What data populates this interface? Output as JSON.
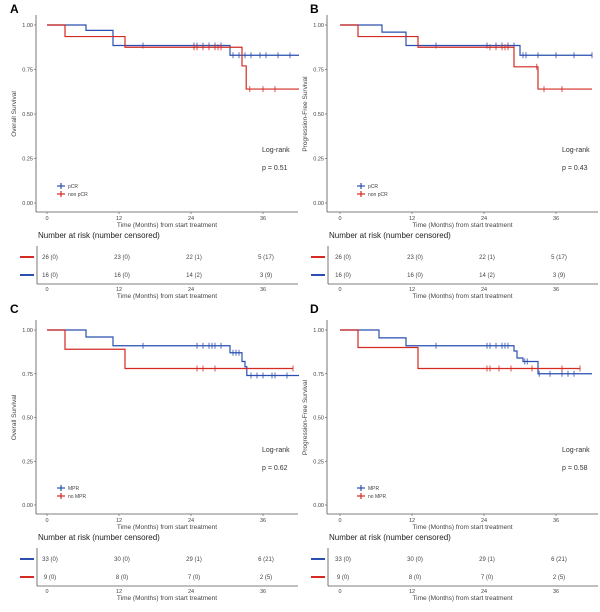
{
  "colors": {
    "blue": "#2a4fb0",
    "red": "#d42a22",
    "axis": "#555555"
  },
  "chart_data": [
    {
      "type": "line",
      "subtype": "kaplan-meier",
      "panel": "A",
      "ylabel": "Overall Survival",
      "xlabel": "Time (Months) from start treatment",
      "xticks": [
        0,
        12,
        24,
        36
      ],
      "yticks": [
        "0.00",
        "0.25",
        "0.50",
        "0.75",
        "1.00"
      ],
      "xlim": [
        0,
        42
      ],
      "ylim": [
        0,
        1
      ],
      "stat_title": "Log-rank",
      "stat_p": "p = 0.51",
      "series": [
        {
          "name": "pCR",
          "color": "blue",
          "steps": [
            [
              0,
              1
            ],
            [
              6.5,
              0.97
            ],
            [
              11,
              0.885
            ],
            [
              30.5,
              0.83
            ],
            [
              42,
              0.83
            ]
          ],
          "censors": [
            16,
            24.5,
            25,
            26,
            27,
            28,
            29,
            31,
            32,
            33,
            34,
            35.5,
            36.5,
            38.5,
            40.5
          ]
        },
        {
          "name": "non pCR",
          "color": "red",
          "steps": [
            [
              0,
              1
            ],
            [
              3,
              0.935
            ],
            [
              13,
              0.875
            ],
            [
              32.5,
              0.77
            ],
            [
              33.2,
              0.64
            ],
            [
              42,
              0.64
            ]
          ],
          "censors": [
            24.5,
            25,
            26,
            27,
            28,
            28.5,
            29,
            33.8,
            36,
            38
          ]
        }
      ],
      "risk_table": {
        "title": "Number at risk (number censored)",
        "xlabel": "Time (Months) from start treatment",
        "rows": [
          {
            "color": "red",
            "values": [
              "26 (0)",
              "23 (0)",
              "22 (1)",
              "5 (17)"
            ]
          },
          {
            "color": "blue",
            "values": [
              "16 (0)",
              "16 (0)",
              "14 (2)",
              "3 (9)"
            ]
          }
        ]
      }
    },
    {
      "type": "line",
      "subtype": "kaplan-meier",
      "panel": "B",
      "ylabel": "Progression-Free Survival",
      "xlabel": "Time (Months) from start treatment",
      "xticks": [
        0,
        12,
        24,
        36
      ],
      "yticks": [
        "0.00",
        "0.25",
        "0.50",
        "0.75",
        "1.00"
      ],
      "xlim": [
        0,
        42
      ],
      "ylim": [
        0,
        1
      ],
      "stat_title": "Log-rank",
      "stat_p": "p = 0.43",
      "series": [
        {
          "name": "pCR",
          "color": "blue",
          "steps": [
            [
              0,
              1
            ],
            [
              7,
              0.96
            ],
            [
              11,
              0.885
            ],
            [
              30,
              0.83
            ],
            [
              42,
              0.83
            ]
          ],
          "censors": [
            16,
            24.5,
            26,
            27,
            28,
            29,
            30.5,
            31,
            33,
            36,
            39,
            42
          ]
        },
        {
          "name": "non pCR",
          "color": "red",
          "steps": [
            [
              0,
              1
            ],
            [
              3,
              0.935
            ],
            [
              13,
              0.875
            ],
            [
              29,
              0.765
            ],
            [
              33,
              0.64
            ],
            [
              42,
              0.64
            ]
          ],
          "censors": [
            25,
            26,
            27,
            27.5,
            28,
            32.8,
            34,
            37
          ]
        }
      ],
      "risk_table": {
        "title": "Number at risk (number censored)",
        "xlabel": "Time (Months) from start treatment",
        "rows": [
          {
            "color": "red",
            "values": [
              "26 (0)",
              "23 (0)",
              "22 (1)",
              "5 (17)"
            ]
          },
          {
            "color": "blue",
            "values": [
              "16 (0)",
              "16 (0)",
              "14 (2)",
              "3 (9)"
            ]
          }
        ]
      }
    },
    {
      "type": "line",
      "subtype": "kaplan-meier",
      "panel": "C",
      "ylabel": "Overall Survival",
      "xlabel": "Time (Months) from start treatment",
      "xticks": [
        0,
        12,
        24,
        36
      ],
      "yticks": [
        "0.00",
        "0.25",
        "0.50",
        "0.75",
        "1.00"
      ],
      "xlim": [
        0,
        42
      ],
      "ylim": [
        0,
        1
      ],
      "stat_title": "Log-rank",
      "stat_p": "p = 0.62",
      "series": [
        {
          "name": "MPR",
          "color": "blue",
          "steps": [
            [
              0,
              1
            ],
            [
              6.5,
              0.96
            ],
            [
              11,
              0.91
            ],
            [
              30.5,
              0.87
            ],
            [
              32.5,
              0.82
            ],
            [
              33,
              0.79
            ],
            [
              33.3,
              0.74
            ],
            [
              42,
              0.74
            ]
          ],
          "censors": [
            16,
            25,
            26,
            27,
            27.5,
            28,
            29,
            31,
            31.5,
            32,
            34,
            35,
            36,
            37.5,
            38,
            40
          ]
        },
        {
          "name": "no MPR",
          "color": "red",
          "steps": [
            [
              0,
              1
            ],
            [
              3,
              0.89
            ],
            [
              13,
              0.78
            ],
            [
              41,
              0.78
            ]
          ],
          "censors": [
            25,
            26,
            28,
            41
          ]
        }
      ],
      "risk_table": {
        "title": "Number at risk (number censored)",
        "xlabel": "Time (Months) from start treatment",
        "rows": [
          {
            "color": "blue",
            "values": [
              "33 (0)",
              "30 (0)",
              "29 (1)",
              "6 (21)"
            ]
          },
          {
            "color": "red",
            "values": [
              "9 (0)",
              "8 (0)",
              "7 (0)",
              "2 (5)"
            ]
          }
        ]
      }
    },
    {
      "type": "line",
      "subtype": "kaplan-meier",
      "panel": "D",
      "ylabel": "Progression-Free Survival",
      "xlabel": "Time (Months) from start treatment",
      "xticks": [
        0,
        12,
        24,
        36
      ],
      "yticks": [
        "0.00",
        "0.25",
        "0.50",
        "0.75",
        "1.00"
      ],
      "xlim": [
        0,
        42
      ],
      "ylim": [
        0,
        1
      ],
      "stat_title": "Log-rank",
      "stat_p": "p = 0.58",
      "series": [
        {
          "name": "MPR",
          "color": "blue",
          "steps": [
            [
              0,
              1
            ],
            [
              6.5,
              0.955
            ],
            [
              11,
              0.91
            ],
            [
              29,
              0.88
            ],
            [
              29.5,
              0.84
            ],
            [
              30.5,
              0.82
            ],
            [
              33,
              0.75
            ],
            [
              42,
              0.75
            ]
          ],
          "censors": [
            16,
            24.5,
            25,
            26,
            27,
            27.5,
            28,
            30.8,
            31.2,
            33.2,
            35,
            37,
            38,
            39
          ]
        },
        {
          "name": "no MPR",
          "color": "red",
          "steps": [
            [
              0,
              1
            ],
            [
              3,
              0.9
            ],
            [
              13,
              0.78
            ],
            [
              40,
              0.78
            ]
          ],
          "censors": [
            24.5,
            25,
            26.5,
            28.5,
            32,
            37,
            40
          ]
        }
      ],
      "risk_table": {
        "title": "Number at risk (number censored)",
        "xlabel": "Time (Months) from start treatment",
        "rows": [
          {
            "color": "blue",
            "values": [
              "33 (0)",
              "30 (0)",
              "29 (1)",
              "6 (21)"
            ]
          },
          {
            "color": "red",
            "values": [
              "9 (0)",
              "8 (0)",
              "7 (0)",
              "2 (5)"
            ]
          }
        ]
      }
    }
  ]
}
